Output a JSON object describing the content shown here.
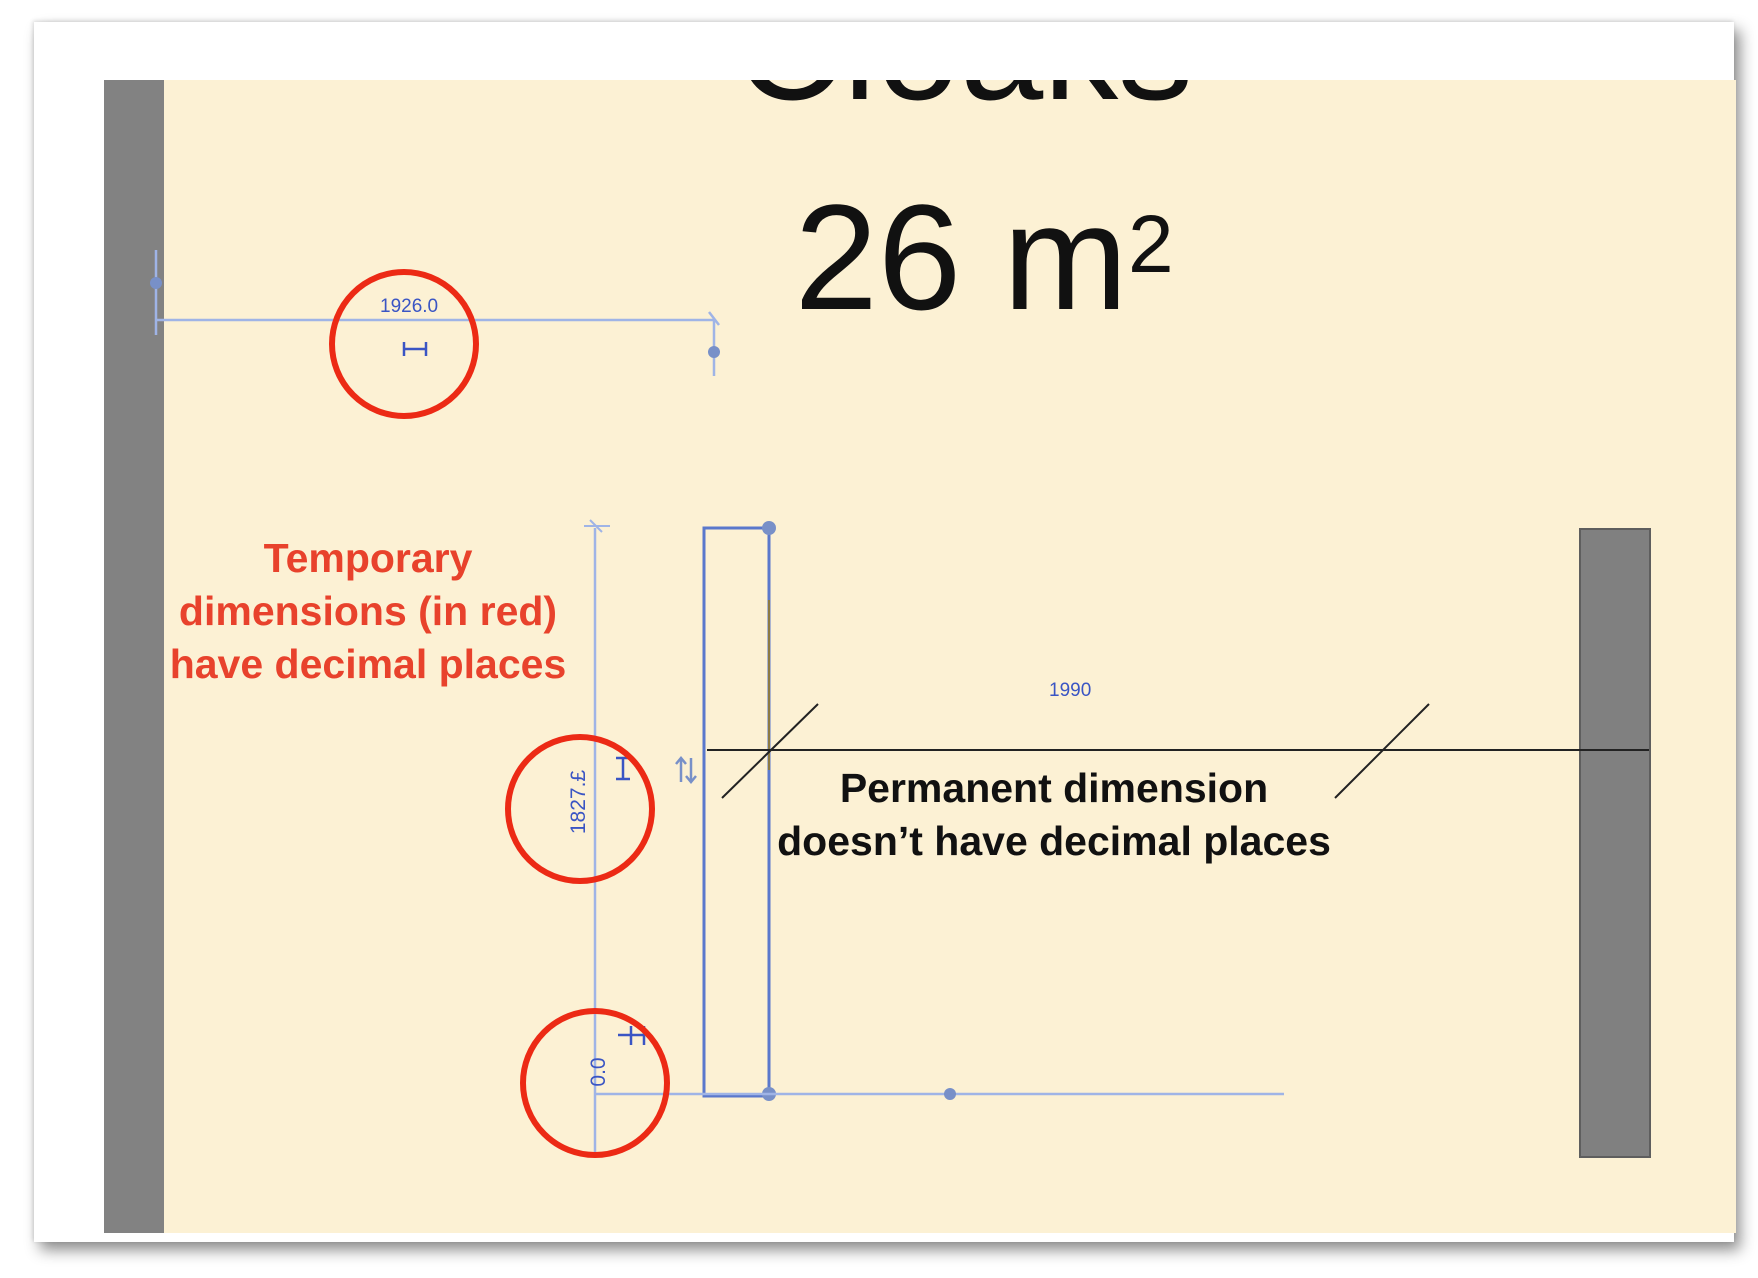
{
  "room": {
    "name": "Cloaks",
    "area_value": "26 m",
    "area_superscript": "2"
  },
  "temporary_dimensions": {
    "horizontal_value": "1926.0",
    "vertical_value": "1827.£",
    "bottom_value": "0.0"
  },
  "permanent_dimension": {
    "value": "1990"
  },
  "callouts": {
    "temporary": {
      "line1": "Temporary",
      "line2": "dimensions (in red)",
      "line3": "have decimal places",
      "color": "#e8422c"
    },
    "permanent": {
      "line1": "Permanent dimension",
      "line2": "doesn’t have decimal places",
      "color": "#111111"
    }
  },
  "colors": {
    "canvas_background": "#fcf1d4",
    "wall": "#828282",
    "dimension_blue": "#3a55c4",
    "highlight_circle": "#ec2a15"
  },
  "icons": {
    "lock_dimension": "i-beam-icon",
    "flip_control": "flip-arrows-icon",
    "grip": "grip-dot-icon"
  }
}
